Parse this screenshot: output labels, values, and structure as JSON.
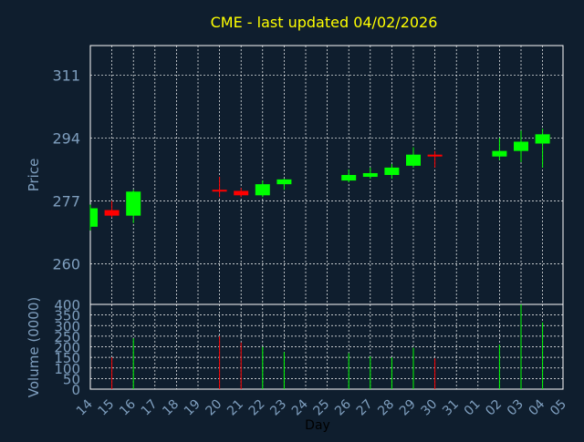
{
  "chart_data": {
    "type": "candlestick",
    "title": "CME - last updated 04/02/2026",
    "xlabel": "Day",
    "ylabel_price": "Price",
    "ylabel_volume": "Volume (0000)",
    "price_ticks": [
      311,
      294,
      277,
      260
    ],
    "price_range": [
      249,
      319
    ],
    "volume_ticks": [
      400,
      350,
      300,
      250,
      200,
      150,
      100,
      50,
      0
    ],
    "volume_range": [
      0,
      400
    ],
    "x_tick_labels": [
      "14",
      "15",
      "16",
      "17",
      "18",
      "19",
      "20",
      "21",
      "22",
      "23",
      "24",
      "25",
      "26",
      "27",
      "28",
      "29",
      "30",
      "31",
      "01",
      "02",
      "03",
      "04",
      "05"
    ],
    "grid": true,
    "colors": {
      "up": "#00ff00",
      "down": "#ff0000",
      "background": "#0f1e2e",
      "title": "#ffff00",
      "axis_text": "#7f9fbf",
      "grid": "#ffffff"
    },
    "candles": [
      {
        "day": "14",
        "open": 270.0,
        "high": 276.0,
        "low": 269.0,
        "close": 275.0
      },
      {
        "day": "15",
        "open": 274.5,
        "high": 277.0,
        "low": 272.5,
        "close": 273.0
      },
      {
        "day": "16",
        "open": 273.0,
        "high": 280.0,
        "low": 271.0,
        "close": 279.5
      },
      {
        "day": "20",
        "open": 280.0,
        "high": 283.5,
        "low": 278.0,
        "close": 279.6
      },
      {
        "day": "21",
        "open": 279.7,
        "high": 280.5,
        "low": 278.0,
        "close": 278.5
      },
      {
        "day": "22",
        "open": 278.5,
        "high": 282.5,
        "low": 278.0,
        "close": 281.5
      },
      {
        "day": "23",
        "open": 281.5,
        "high": 283.0,
        "low": 280.0,
        "close": 282.8
      },
      {
        "day": "26",
        "open": 282.5,
        "high": 285.5,
        "low": 282.0,
        "close": 284.0
      },
      {
        "day": "27",
        "open": 283.5,
        "high": 286.0,
        "low": 283.0,
        "close": 284.5
      },
      {
        "day": "28",
        "open": 284.0,
        "high": 287.0,
        "low": 283.0,
        "close": 286.0
      },
      {
        "day": "29",
        "open": 286.5,
        "high": 291.5,
        "low": 286.0,
        "close": 289.5
      },
      {
        "day": "30",
        "open": 289.5,
        "high": 290.5,
        "low": 286.0,
        "close": 289.0
      },
      {
        "day": "02",
        "open": 289.0,
        "high": 294.0,
        "low": 288.0,
        "close": 290.5
      },
      {
        "day": "03",
        "open": 290.5,
        "high": 296.0,
        "low": 287.5,
        "close": 293.0
      },
      {
        "day": "04",
        "open": 292.5,
        "high": 296.5,
        "low": 286.0,
        "close": 295.0
      }
    ],
    "volume": [
      {
        "day": "15",
        "value": 150,
        "dir": "down"
      },
      {
        "day": "16",
        "value": 240,
        "dir": "up"
      },
      {
        "day": "20",
        "value": 250,
        "dir": "down"
      },
      {
        "day": "21",
        "value": 220,
        "dir": "down"
      },
      {
        "day": "22",
        "value": 200,
        "dir": "up"
      },
      {
        "day": "23",
        "value": 175,
        "dir": "up"
      },
      {
        "day": "26",
        "value": 170,
        "dir": "up"
      },
      {
        "day": "27",
        "value": 155,
        "dir": "up"
      },
      {
        "day": "28",
        "value": 150,
        "dir": "up"
      },
      {
        "day": "29",
        "value": 195,
        "dir": "up"
      },
      {
        "day": "30",
        "value": 145,
        "dir": "down"
      },
      {
        "day": "02",
        "value": 210,
        "dir": "up"
      },
      {
        "day": "03",
        "value": 400,
        "dir": "up"
      },
      {
        "day": "04",
        "value": 315,
        "dir": "up"
      }
    ]
  }
}
